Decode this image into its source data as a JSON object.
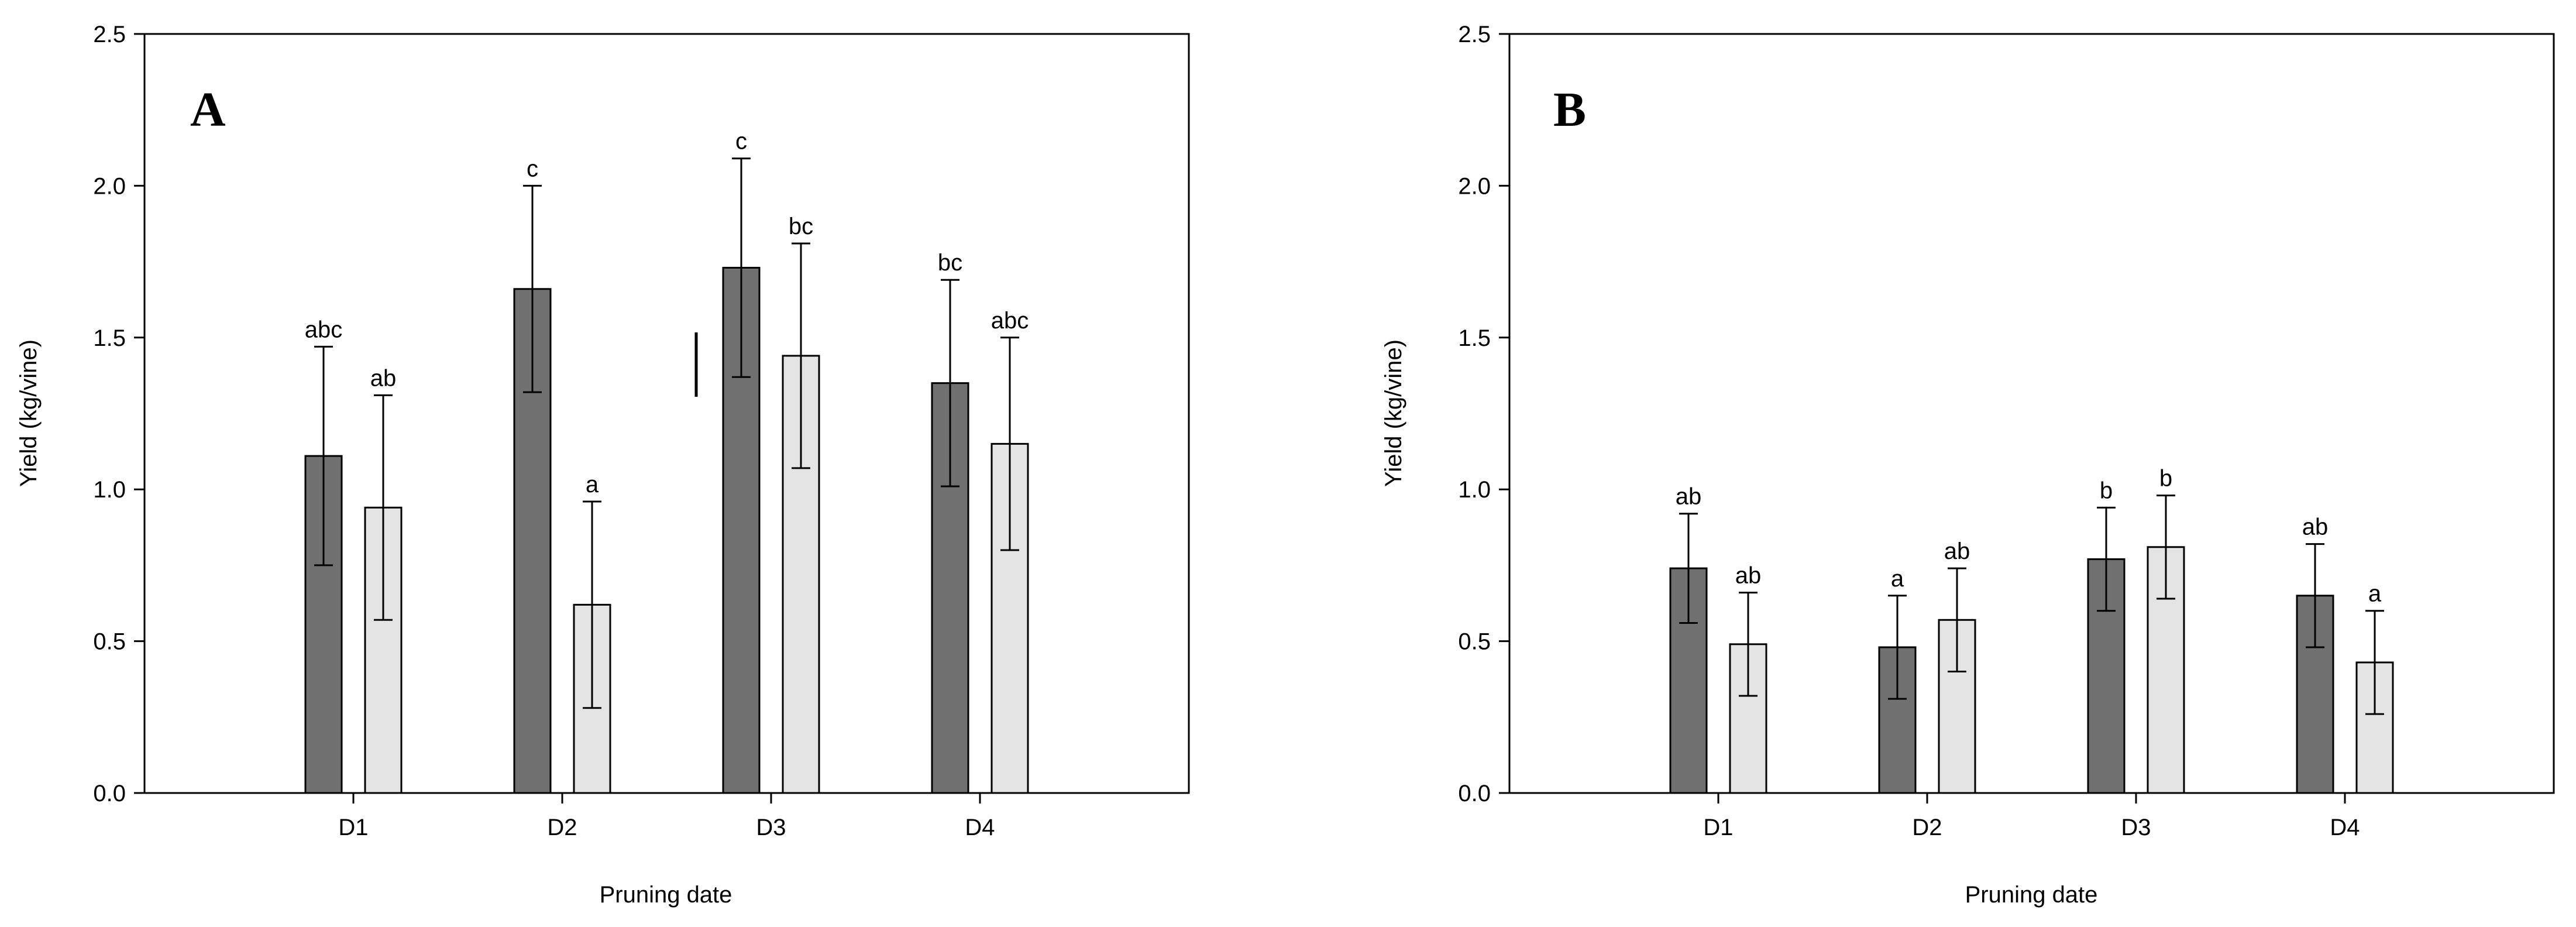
{
  "chart_data": [
    {
      "type": "bar",
      "panel_label": "A",
      "xlabel": "Pruning date",
      "ylabel": "Yield (kg/vine)",
      "categories": [
        "D1",
        "D2",
        "D3",
        "D4"
      ],
      "ylim": [
        0,
        2.5
      ],
      "yticks": [
        "0.0",
        "0.5",
        "1.0",
        "1.5",
        "2.0",
        "2.5"
      ],
      "grid": false,
      "series": [
        {
          "color": "#707070",
          "values": [
            1.11,
            1.66,
            1.73,
            1.35
          ],
          "errors": [
            0.36,
            0.34,
            0.36,
            0.34
          ],
          "labels": [
            "abc",
            "c",
            "c",
            "bc"
          ]
        },
        {
          "color": "#e4e4e4",
          "values": [
            0.94,
            0.62,
            1.44,
            1.15
          ],
          "errors": [
            0.37,
            0.34,
            0.37,
            0.35
          ],
          "labels": [
            "ab",
            "a",
            "bc",
            "abc"
          ]
        }
      ]
    },
    {
      "type": "bar",
      "panel_label": "B",
      "xlabel": "Pruning date",
      "ylabel": "Yield (kg/vine)",
      "categories": [
        "D1",
        "D2",
        "D3",
        "D4"
      ],
      "ylim": [
        0,
        2.5
      ],
      "yticks": [
        "0.0",
        "0.5",
        "1.0",
        "1.5",
        "2.0",
        "2.5"
      ],
      "grid": false,
      "series": [
        {
          "color": "#707070",
          "values": [
            0.74,
            0.48,
            0.77,
            0.65
          ],
          "errors": [
            0.18,
            0.17,
            0.17,
            0.17
          ],
          "labels": [
            "ab",
            "a",
            "b",
            "ab"
          ]
        },
        {
          "color": "#e4e4e4",
          "values": [
            0.49,
            0.57,
            0.81,
            0.43
          ],
          "errors": [
            0.17,
            0.17,
            0.17,
            0.17
          ],
          "labels": [
            "ab",
            "ab",
            "b",
            "a"
          ]
        }
      ]
    }
  ]
}
